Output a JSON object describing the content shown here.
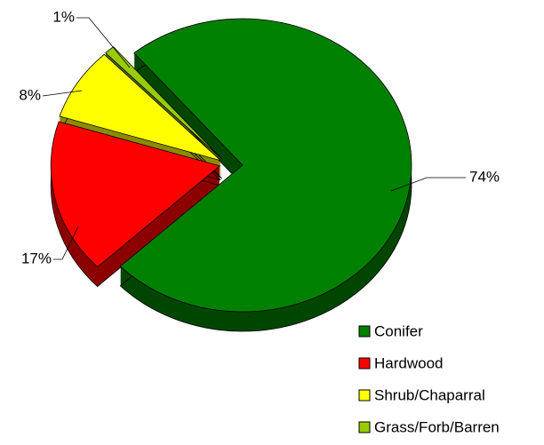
{
  "chart_data": {
    "type": "pie",
    "categories": [
      "Conifer",
      "Hardwood",
      "Shrub/Chaparral",
      "Grass/Forb/Barren"
    ],
    "values": [
      74,
      17,
      8,
      1
    ],
    "value_labels": [
      "74%",
      "17%",
      "8%",
      "1%"
    ],
    "colors": [
      "#008000",
      "#ff0000",
      "#ffff00",
      "#99cc00"
    ],
    "legend": "bottom-right"
  }
}
